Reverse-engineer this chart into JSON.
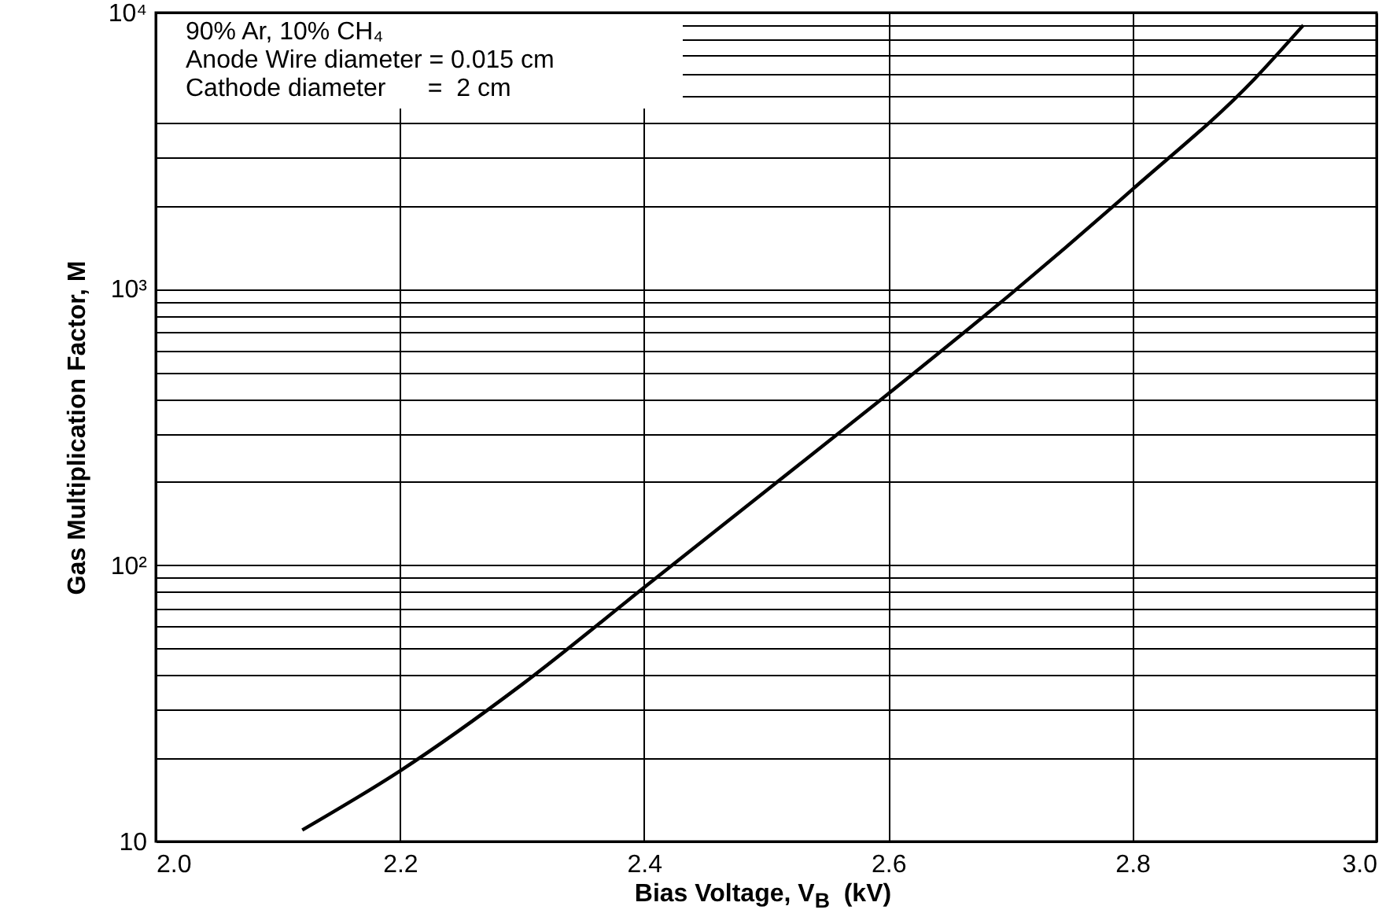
{
  "chart_data": {
    "type": "line",
    "xlabel": "Bias Voltage, V$_{B}$  (kV)",
    "ylabel": "Gas Multiplication Factor, M",
    "x": [
      2.12,
      2.2,
      2.3,
      2.4,
      2.5,
      2.6,
      2.7,
      2.8,
      2.9,
      2.94
    ],
    "series": [
      {
        "color": "#000000",
        "values": [
          11,
          18,
          37,
          83,
          186,
          417,
          955,
          2290,
          5750,
          9000
        ]
      }
    ],
    "xlim": [
      2.0,
      3.0
    ],
    "xticks": [
      {
        "value": 2.0,
        "label": "2.0"
      },
      2.2,
      2.4,
      2.6,
      2.8,
      {
        "value": 3.0,
        "label": "3.0"
      }
    ],
    "ylim": [
      10,
      10000
    ],
    "log": true,
    "yticks": [
      10,
      {
        "value": 20,
        "label": null
      },
      {
        "value": 30,
        "label": null
      },
      {
        "value": 40,
        "label": null
      },
      {
        "value": 50,
        "label": null
      },
      {
        "value": 60,
        "label": null
      },
      {
        "value": 70,
        "label": null
      },
      {
        "value": 80,
        "label": null
      },
      {
        "value": 90,
        "label": null
      },
      {
        "value": 100,
        "label": "10²"
      },
      {
        "value": 200,
        "label": null
      },
      {
        "value": 300,
        "label": null
      },
      {
        "value": 400,
        "label": null
      },
      {
        "value": 500,
        "label": null
      },
      {
        "value": 600,
        "label": null
      },
      {
        "value": 700,
        "label": null
      },
      {
        "value": 800,
        "label": null
      },
      {
        "value": 900,
        "label": null
      },
      {
        "value": 1000,
        "label": "10³"
      },
      {
        "value": 2000,
        "label": null
      },
      {
        "value": 3000,
        "label": null
      },
      {
        "value": 4000,
        "label": null
      },
      {
        "value": 5000,
        "label": null
      },
      {
        "value": 6000,
        "label": null
      },
      {
        "value": 7000,
        "label": null
      },
      {
        "value": 8000,
        "label": null
      },
      {
        "value": 9000,
        "label": null
      },
      {
        "value": 10000,
        "label": "10⁴"
      }
    ],
    "grid": true,
    "legend": false,
    "annotations": [
      "90% Ar, 10% CH₄",
      "Anode Wire diameter = 0.015 cm",
      "Cathode diameter      =  2 cm"
    ]
  }
}
